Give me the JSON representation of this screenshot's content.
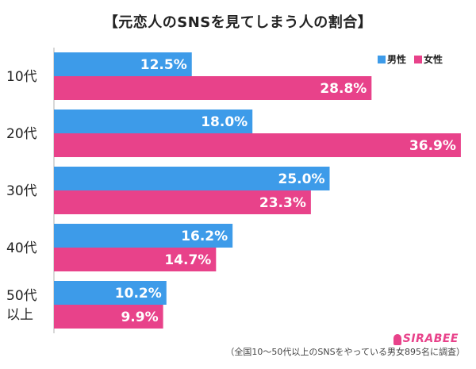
{
  "title": "【元恋人のSNSを見てしまう人の割合】",
  "legend": {
    "male": "男性",
    "female": "女性"
  },
  "footnote": "（全国10〜50代以上のSNSをやっている男女895名に調査）",
  "logo": "SIRABEE",
  "colors": {
    "male": "#3d9be9",
    "female": "#e8428a",
    "axis": "#b0b0b0"
  },
  "chart_data": {
    "type": "bar",
    "orientation": "horizontal",
    "categories": [
      "10代",
      "20代",
      "30代",
      "40代",
      "50代\n以上"
    ],
    "series": [
      {
        "name": "男性",
        "values": [
          12.5,
          18.0,
          25.0,
          16.2,
          10.2
        ],
        "labels": [
          "12.5%",
          "18.0%",
          "25.0%",
          "16.2%",
          "10.2%"
        ]
      },
      {
        "name": "女性",
        "values": [
          28.8,
          36.9,
          23.3,
          14.7,
          9.9
        ],
        "labels": [
          "28.8%",
          "36.9%",
          "23.3%",
          "14.7%",
          "9.9%"
        ]
      }
    ],
    "xlim": [
      0,
      40
    ],
    "grid": false,
    "legend_position": "top-right"
  }
}
